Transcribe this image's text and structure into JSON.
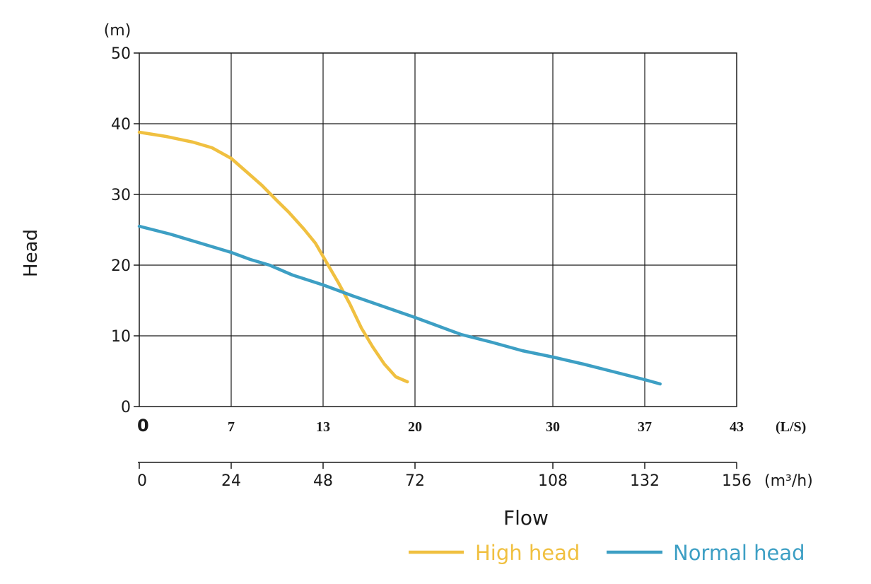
{
  "chart_data": {
    "type": "line",
    "ylabel": "Head",
    "y_unit": "(m)",
    "ylim": [
      0,
      50
    ],
    "y_ticks": [
      "0",
      "10",
      "20",
      "30",
      "40",
      "50"
    ],
    "xlabel": "Flow",
    "x_unit": "(L/S)",
    "xlim": [
      0,
      156
    ],
    "x_ticks": [
      0,
      24,
      48,
      72,
      108,
      132,
      156
    ],
    "x_tick_labels_ls": [
      "0",
      "7",
      "13",
      "20",
      "30",
      "37",
      "43"
    ],
    "x_secondary_unit": "(m³/h)",
    "x_tick_labels_m3h": [
      "0",
      "24",
      "48",
      "72",
      "108",
      "132",
      "156"
    ],
    "grid": true,
    "legend_position": "bottom-right",
    "series": [
      {
        "name": "High head",
        "color": "#f0c040",
        "x": [
          0,
          7,
          14,
          19,
          24,
          28,
          32,
          36,
          39,
          43,
          46,
          49,
          52,
          55,
          58,
          61,
          64,
          67,
          70
        ],
        "y": [
          38.8,
          38.2,
          37.4,
          36.6,
          35.1,
          33.2,
          31.3,
          29.1,
          27.5,
          25.1,
          23.1,
          20.3,
          17.5,
          14.5,
          11.1,
          8.4,
          6.0,
          4.2,
          3.5
        ]
      },
      {
        "name": "Normal head",
        "color": "#3d9fc4",
        "x": [
          0,
          8,
          16,
          24,
          29,
          34,
          40,
          48,
          56,
          64,
          72,
          77,
          84,
          92,
          100,
          108,
          116,
          124,
          132,
          136
        ],
        "y": [
          25.5,
          24.4,
          23.1,
          21.8,
          20.8,
          20.0,
          18.6,
          17.2,
          15.6,
          14.1,
          12.6,
          11.6,
          10.2,
          9.1,
          7.9,
          7.0,
          6.0,
          4.9,
          3.8,
          3.2
        ]
      }
    ]
  }
}
